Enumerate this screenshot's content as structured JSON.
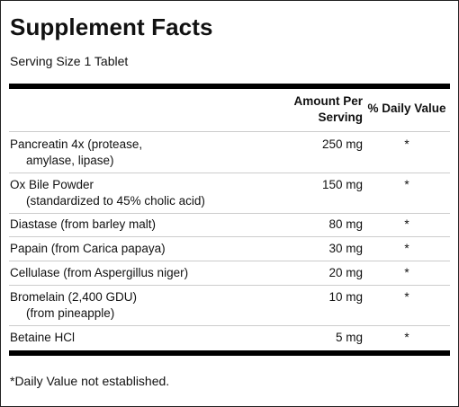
{
  "title": "Supplement Facts",
  "serving": "Serving Size 1 Tablet",
  "header": {
    "amount_line1": "Amount Per",
    "amount_line2": "Serving",
    "dv": "% Daily Value"
  },
  "rows": [
    {
      "name": "Pancreatin 4x (protease,",
      "sub": "amylase, lipase)",
      "amount": "250 mg",
      "dv": "*"
    },
    {
      "name": "Ox Bile Powder",
      "sub": "(standardized to 45% cholic acid)",
      "amount": "150 mg",
      "dv": "*"
    },
    {
      "name": "Diastase (from barley malt)",
      "sub": "",
      "amount": "80 mg",
      "dv": "*"
    },
    {
      "name": "Papain (from Carica papaya)",
      "sub": "",
      "amount": "30 mg",
      "dv": "*"
    },
    {
      "name": "Cellulase (from Aspergillus niger)",
      "sub": "",
      "amount": "20 mg",
      "dv": "*"
    },
    {
      "name": "Bromelain (2,400 GDU)",
      "sub": "(from pineapple)",
      "amount": "10 mg",
      "dv": "*"
    },
    {
      "name": "Betaine HCl",
      "sub": "",
      "amount": "5 mg",
      "dv": "*"
    }
  ],
  "footnote": "*Daily Value not established."
}
